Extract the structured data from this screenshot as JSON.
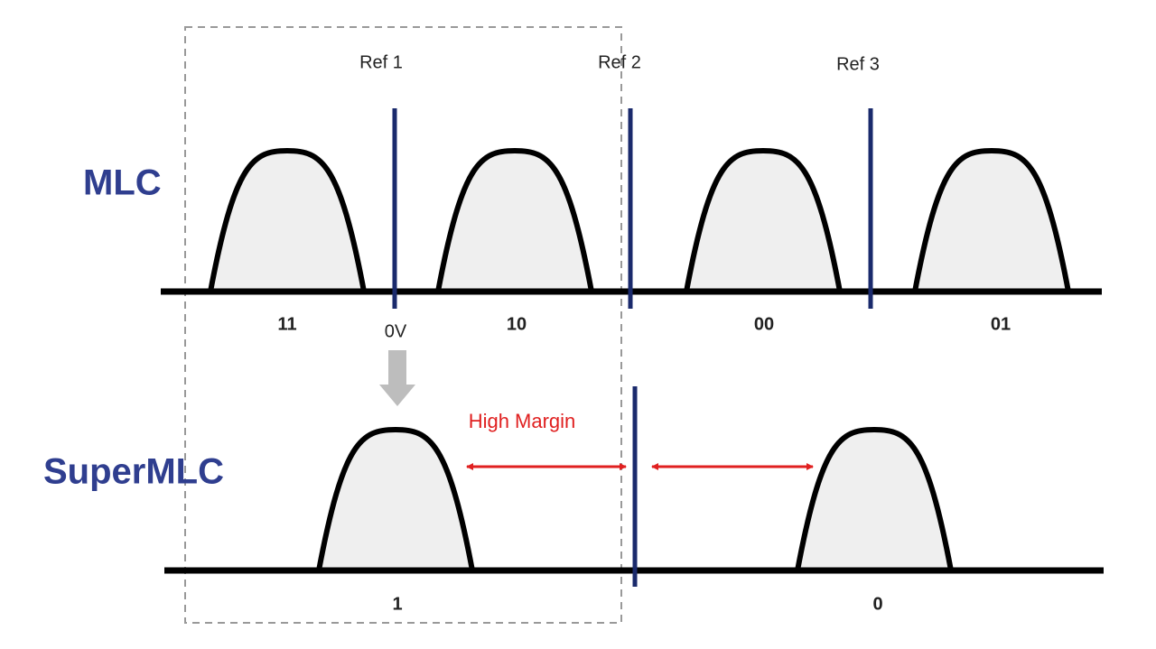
{
  "rows": [
    {
      "label": "MLC",
      "states": [
        "11",
        "10",
        "00",
        "01"
      ]
    },
    {
      "label": "SuperMLC",
      "states": [
        "1",
        "0"
      ]
    }
  ],
  "references": [
    "Ref 1",
    "Ref 2",
    "Ref 3"
  ],
  "voltage_label": "0V",
  "margin_label": "High Margin"
}
